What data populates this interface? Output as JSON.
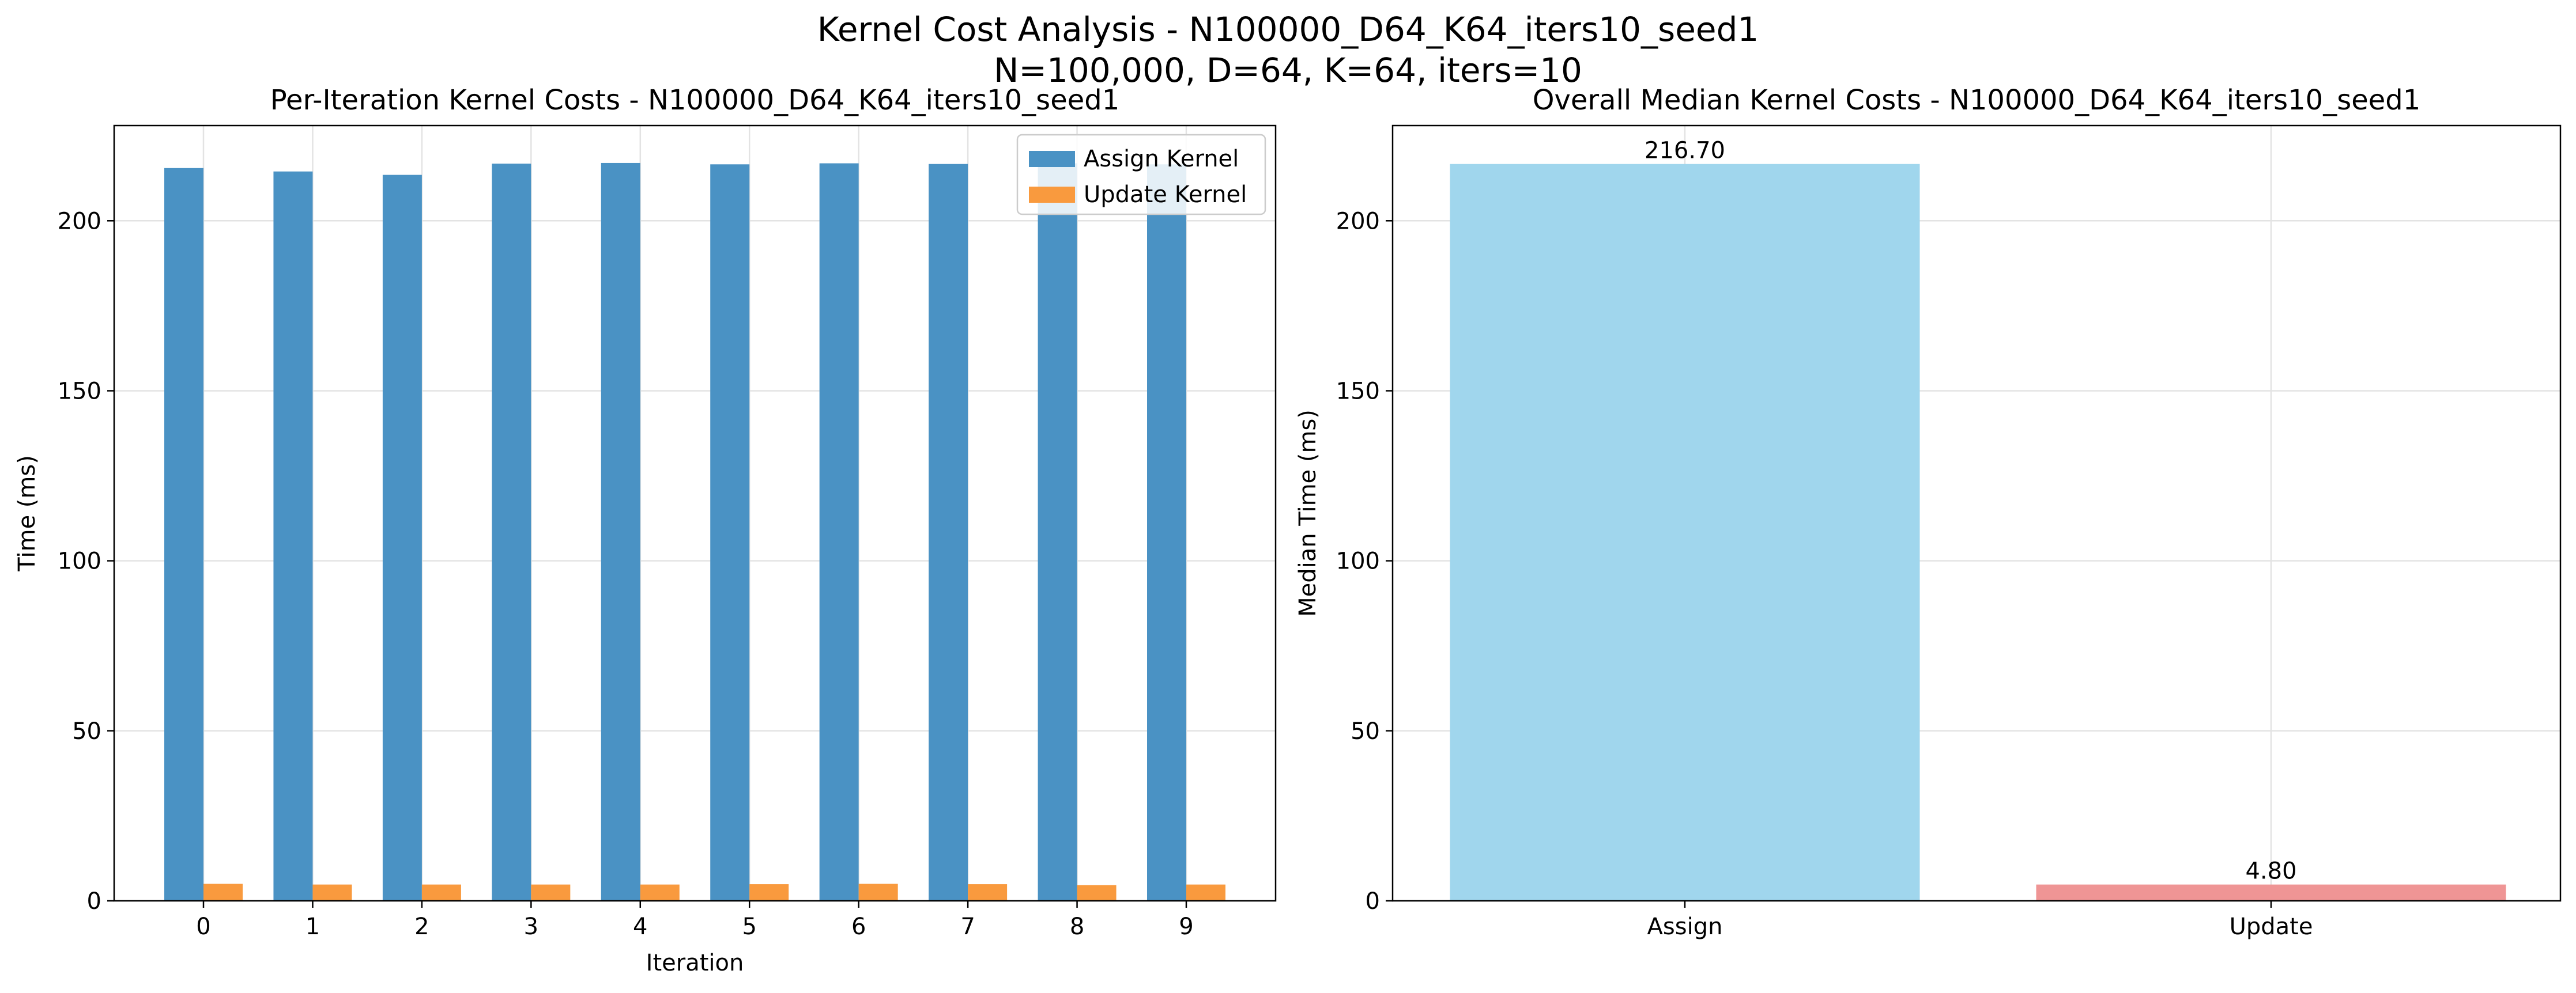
{
  "figure": {
    "title_line1": "Kernel Cost Analysis - N100000_D64_K64_iters10_seed1",
    "title_line2": "N=100,000, D=64, K=64, iters=10"
  },
  "chart_data": [
    {
      "type": "bar",
      "title": "Per-Iteration Kernel Costs - N100000_D64_K64_iters10_seed1",
      "xlabel": "Iteration",
      "ylabel": "Time (ms)",
      "categories": [
        "0",
        "1",
        "2",
        "3",
        "4",
        "5",
        "6",
        "7",
        "8",
        "9"
      ],
      "series": [
        {
          "name": "Assign Kernel",
          "color": "#4a92c4",
          "values": [
            215.5,
            214.5,
            213.5,
            216.8,
            217.0,
            216.6,
            216.9,
            216.7,
            216.9,
            216.6
          ]
        },
        {
          "name": "Update Kernel",
          "color": "#f99a3e",
          "values": [
            5.0,
            4.8,
            4.8,
            4.8,
            4.8,
            4.9,
            5.0,
            4.9,
            4.6,
            4.8
          ]
        }
      ],
      "ylim": [
        0,
        228
      ],
      "yticks": [
        0,
        50,
        100,
        150,
        200
      ],
      "grid": true,
      "legend": "top-right"
    },
    {
      "type": "bar",
      "title": "Overall Median Kernel Costs - N100000_D64_K64_iters10_seed1",
      "xlabel": "",
      "ylabel": "Median Time (ms)",
      "categories": [
        "Assign",
        "Update"
      ],
      "values": [
        216.7,
        4.8
      ],
      "value_labels": [
        "216.70",
        "4.80"
      ],
      "colors": [
        "#a0d6ed",
        "#ef9595"
      ],
      "ylim": [
        0,
        228
      ],
      "yticks": [
        0,
        50,
        100,
        150,
        200
      ],
      "grid": true
    }
  ]
}
